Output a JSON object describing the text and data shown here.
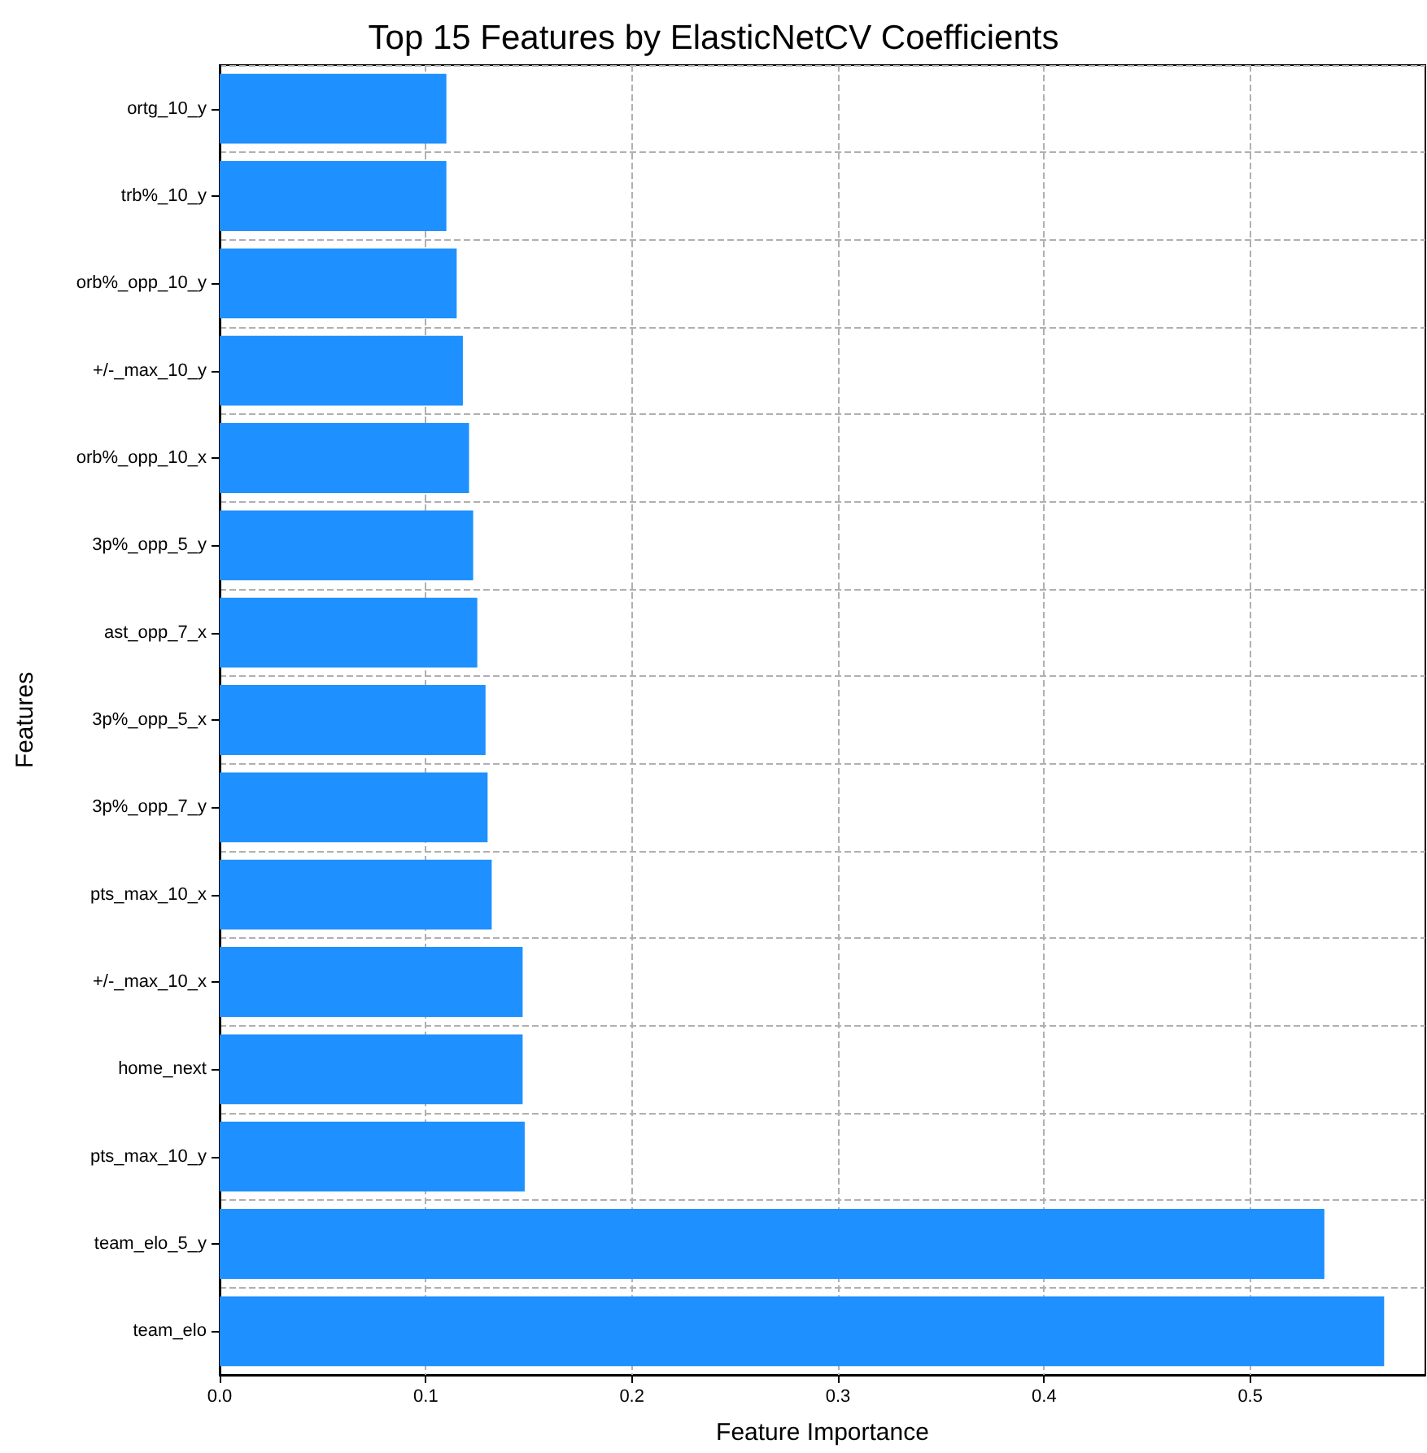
{
  "chart_data": {
    "type": "bar",
    "orientation": "horizontal",
    "title": "Top 15 Features by ElasticNetCV Coefficients",
    "xlabel": "Feature Importance",
    "ylabel": "Features",
    "categories": [
      "ortg_10_y",
      "trb%_10_y",
      "orb%_opp_10_y",
      "+/-_max_10_y",
      "orb%_opp_10_x",
      "3p%_opp_5_y",
      "ast_opp_7_x",
      "3p%_opp_5_x",
      "3p%_opp_7_y",
      "pts_max_10_x",
      "+/-_max_10_x",
      "home_next",
      "pts_max_10_y",
      "team_elo_5_y",
      "team_elo"
    ],
    "values": [
      0.11,
      0.11,
      0.115,
      0.118,
      0.121,
      0.123,
      0.125,
      0.129,
      0.13,
      0.132,
      0.147,
      0.147,
      0.148,
      0.536,
      0.565
    ],
    "color": "#1e90ff",
    "xlim": [
      0,
      0.585
    ],
    "xticks": [
      {
        "value": 0,
        "label": "0.0"
      },
      0.1,
      0.2,
      0.3,
      0.4,
      0.5
    ],
    "grid": true,
    "line_style": "dashed"
  }
}
